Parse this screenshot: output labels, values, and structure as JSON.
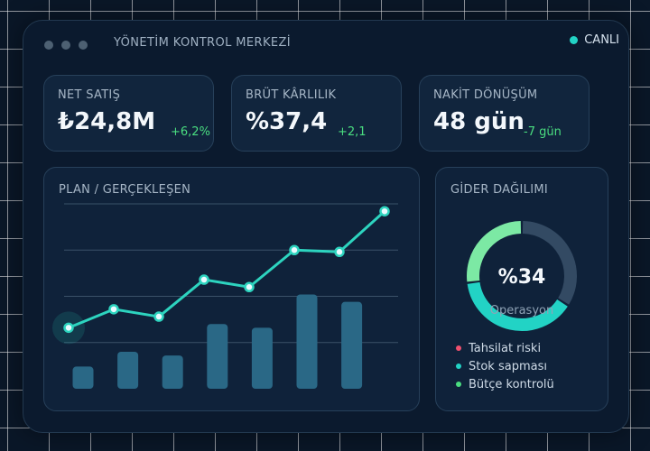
{
  "header": {
    "title": "YÖNETİM KONTROL MERKEZİ",
    "live_label": "CANLI",
    "live_color": "#22d3c5"
  },
  "kpis": [
    {
      "label": "NET SATIŞ",
      "value": "₺24,8M",
      "change": "+6,2%"
    },
    {
      "label": "BRÜT KÂRLILIK",
      "value": "%37,4",
      "change": "+2,1"
    },
    {
      "label": "NAKİT DÖNÜŞÜM",
      "value": "48 gün",
      "change": "-7 gün"
    }
  ],
  "plan_chart": {
    "title": "PLAN / GERÇEKLEŞEN"
  },
  "chart_data": [
    {
      "type": "bar",
      "title": "PLAN / GERÇEKLEŞEN",
      "xlabel": "",
      "ylabel": "",
      "ylim": [
        0,
        100
      ],
      "grid": true,
      "series": [
        {
          "kind": "line",
          "color": "#2dd4bf",
          "values": [
            33,
            43,
            39,
            59,
            55,
            75,
            74,
            96
          ]
        },
        {
          "kind": "bar",
          "color": "#2a6886",
          "values": [
            12,
            20,
            18,
            35,
            33,
            51,
            47
          ]
        }
      ]
    },
    {
      "type": "pie",
      "title": "GİDER DAĞILIMI",
      "center_value": "%34",
      "center_label": "Operasyon",
      "slices": [
        {
          "label": "Operasyon",
          "value": 34,
          "color": "#334a63"
        },
        {
          "label": "",
          "value": 39,
          "color": "#22d3c5"
        },
        {
          "label": "",
          "value": 27,
          "color": "#7ce9a4"
        }
      ],
      "legend_placement": "bottom"
    }
  ],
  "donut": {
    "title": "GİDER DAĞILIMI",
    "center_value": "%34",
    "center_label": "Operasyon",
    "legend": [
      {
        "label": "Tahsilat riski",
        "color": "#f0506e"
      },
      {
        "label": "Stok sapması",
        "color": "#22d3c5"
      },
      {
        "label": "Bütçe kontrolü",
        "color": "#4ade80"
      }
    ]
  }
}
